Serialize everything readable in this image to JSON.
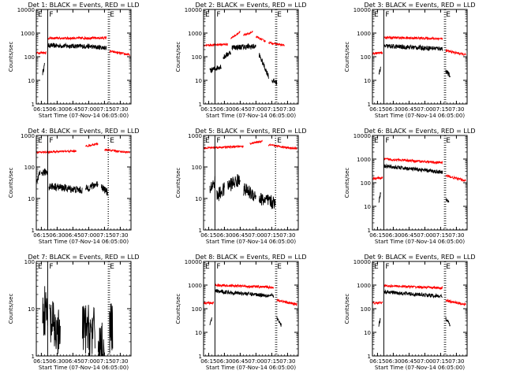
{
  "figure": {
    "type": "lightcurve-grid",
    "rows": 3,
    "cols": 3
  },
  "colors": {
    "events": "#000000",
    "lld": "#ff0000",
    "axes": "#000000"
  },
  "chart_data": [
    {
      "type": "line",
      "title": "Det 1: BLACK = Events, RED = LLD",
      "ylabel": "Counts/sec",
      "xlabel": "Start Time (07-Nov-14 06:05:00)",
      "ylim": [
        1,
        10000
      ],
      "yscale": "log",
      "xlim": [
        6.17,
        7.67
      ],
      "yticks": [
        "1",
        "10",
        "100",
        "1000",
        "10000"
      ],
      "xticks": [
        "06:15",
        "06:30",
        "06:45",
        "07:00",
        "07:15",
        "07:30"
      ],
      "markers": [
        {
          "t": 6.35,
          "style": "solid",
          "label": "F"
        },
        {
          "t": 7.31,
          "style": "dotted",
          "label": "E"
        }
      ],
      "gap_end": 7.33,
      "series": [
        {
          "name": "Events",
          "color": "#000000",
          "segs": [
            [
              6.27,
              20,
              6.3,
              45
            ],
            [
              6.35,
              300,
              7.05,
              270
            ],
            [
              7.05,
              260,
              7.28,
              240
            ]
          ],
          "noise": 0.1
        },
        {
          "name": "LLD",
          "color": "#ff0000",
          "segs": [
            [
              6.17,
              145,
              6.33,
              150
            ],
            [
              6.35,
              600,
              7.28,
              620
            ],
            [
              7.33,
              170,
              7.65,
              120
            ]
          ],
          "noise": 0.05
        }
      ]
    },
    {
      "type": "line",
      "title": "Det 2: BLACK = Events, RED = LLD",
      "ylabel": "Counts/sec",
      "xlabel": "Start Time (07-Nov-14 06:05:00)",
      "ylim": [
        1,
        10000
      ],
      "yscale": "log",
      "xlim": [
        6.17,
        7.67
      ],
      "yticks": [
        "1",
        "10",
        "100",
        "1000",
        "10000"
      ],
      "xticks": [
        "06:15",
        "06:30",
        "06:45",
        "07:00",
        "07:15",
        "07:30"
      ],
      "markers": [
        {
          "t": 6.35,
          "style": "solid",
          "label": "F"
        },
        {
          "t": 7.31,
          "style": "dotted",
          "label": "E"
        }
      ],
      "gap_end": 7.33,
      "series": [
        {
          "name": "Events",
          "color": "#000000",
          "segs": [
            [
              6.27,
              25,
              6.45,
              40
            ],
            [
              6.48,
              90,
              6.6,
              160
            ],
            [
              6.62,
              250,
              7.0,
              270
            ],
            [
              7.05,
              120,
              7.2,
              15
            ],
            [
              7.25,
              10,
              7.33,
              8
            ]
          ],
          "noise": 0.12
        },
        {
          "name": "LLD",
          "color": "#ff0000",
          "segs": [
            [
              6.17,
              300,
              6.55,
              340
            ],
            [
              6.6,
              600,
              6.75,
              1100
            ],
            [
              6.8,
              800,
              6.95,
              1100
            ],
            [
              7.0,
              700,
              7.15,
              450
            ],
            [
              7.2,
              400,
              7.45,
              300
            ]
          ],
          "noise": 0.04
        }
      ]
    },
    {
      "type": "line",
      "title": "Det 3: BLACK = Events, RED = LLD",
      "ylabel": "Counts/sec",
      "xlabel": "Start Time (07-Nov-14 06:05:00)",
      "ylim": [
        1,
        10000
      ],
      "yscale": "log",
      "xlim": [
        6.17,
        7.67
      ],
      "yticks": [
        "1",
        "10",
        "100",
        "1000",
        "10000"
      ],
      "xticks": [
        "06:15",
        "06:30",
        "06:45",
        "07:00",
        "07:15",
        "07:30"
      ],
      "markers": [
        {
          "t": 6.35,
          "style": "solid",
          "label": "F"
        },
        {
          "t": 7.31,
          "style": "dotted",
          "label": "E"
        }
      ],
      "gap_end": 7.33,
      "series": [
        {
          "name": "Events",
          "color": "#000000",
          "segs": [
            [
              6.27,
              20,
              6.3,
              30
            ],
            [
              6.35,
              280,
              7.28,
              220
            ],
            [
              7.33,
              25,
              7.4,
              15
            ]
          ],
          "noise": 0.1
        },
        {
          "name": "LLD",
          "color": "#ff0000",
          "segs": [
            [
              6.17,
              140,
              6.33,
              145
            ],
            [
              6.35,
              650,
              7.28,
              580
            ],
            [
              7.33,
              180,
              7.65,
              120
            ]
          ],
          "noise": 0.05
        }
      ]
    },
    {
      "type": "line",
      "title": "Det 4: BLACK = Events, RED = LLD",
      "ylabel": "Counts/sec",
      "xlabel": "Start Time (07-Nov-14 06:05:00)",
      "ylim": [
        1,
        1000
      ],
      "yscale": "log",
      "xlim": [
        6.17,
        7.67
      ],
      "yticks": [
        "1",
        "10",
        "100",
        "1000"
      ],
      "xticks": [
        "06:15",
        "06:30",
        "06:45",
        "07:00",
        "07:15",
        "07:30"
      ],
      "markers": [
        {
          "t": 6.35,
          "style": "solid",
          "label": "F"
        },
        {
          "t": 7.31,
          "style": "dotted",
          "label": "E"
        }
      ],
      "gap_end": 7.31,
      "series": [
        {
          "name": "Events",
          "color": "#000000",
          "segs": [
            [
              6.17,
              30,
              6.23,
              60
            ],
            [
              6.25,
              65,
              6.35,
              70
            ],
            [
              6.37,
              25,
              6.9,
              18
            ],
            [
              6.95,
              20,
              7.15,
              30
            ],
            [
              7.2,
              25,
              7.3,
              15
            ]
          ],
          "noise": 0.12
        },
        {
          "name": "LLD",
          "color": "#ff0000",
          "segs": [
            [
              6.17,
              290,
              6.8,
              320
            ],
            [
              6.95,
              450,
              7.15,
              550
            ],
            [
              7.25,
              350,
              7.65,
              290
            ]
          ],
          "noise": 0.03
        }
      ]
    },
    {
      "type": "line",
      "title": "Det 5: BLACK = Events, RED = LLD",
      "ylabel": "Counts/sec",
      "xlabel": "Start Time (07-Nov-14 06:05:00)",
      "ylim": [
        1,
        1000
      ],
      "yscale": "log",
      "xlim": [
        6.17,
        7.67
      ],
      "yticks": [
        "1",
        "10",
        "100",
        "1000"
      ],
      "xticks": [
        "06:15",
        "06:30",
        "06:45",
        "07:00",
        "07:15",
        "07:30"
      ],
      "markers": [
        {
          "t": 6.35,
          "style": "solid",
          "label": "F"
        },
        {
          "t": 7.31,
          "style": "dotted",
          "label": "E"
        }
      ],
      "gap_end": 7.31,
      "series": [
        {
          "name": "Events",
          "color": "#000000",
          "segs": [
            [
              6.27,
              20,
              6.35,
              35
            ],
            [
              6.38,
              12,
              6.5,
              20
            ],
            [
              6.55,
              25,
              6.75,
              40
            ],
            [
              6.8,
              20,
              7.0,
              12
            ],
            [
              7.05,
              10,
              7.31,
              7
            ]
          ],
          "noise": 0.22
        },
        {
          "name": "LLD",
          "color": "#ff0000",
          "segs": [
            [
              6.17,
              400,
              6.8,
              450
            ],
            [
              6.9,
              550,
              7.1,
              650
            ],
            [
              7.2,
              500,
              7.65,
              380
            ]
          ],
          "noise": 0.03
        }
      ]
    },
    {
      "type": "line",
      "title": "Det 6: BLACK = Events, RED = LLD",
      "ylabel": "Counts/sec",
      "xlabel": "Start Time (07-Nov-14 06:05:00)",
      "ylim": [
        1,
        10000
      ],
      "yscale": "log",
      "xlim": [
        6.17,
        7.67
      ],
      "yticks": [
        "1",
        "10",
        "100",
        "1000",
        "10000"
      ],
      "xticks": [
        "06:15",
        "06:30",
        "06:45",
        "07:00",
        "07:15",
        "07:30"
      ],
      "markers": [
        {
          "t": 6.35,
          "style": "solid",
          "label": "F"
        },
        {
          "t": 7.31,
          "style": "dotted",
          "label": "E"
        }
      ],
      "gap_end": 7.33,
      "series": [
        {
          "name": "Events",
          "color": "#000000",
          "segs": [
            [
              6.27,
              15,
              6.3,
              40
            ],
            [
              6.35,
              500,
              7.28,
              280
            ],
            [
              7.33,
              20,
              7.38,
              15
            ]
          ],
          "noise": 0.08
        },
        {
          "name": "LLD",
          "color": "#ff0000",
          "segs": [
            [
              6.17,
              150,
              6.33,
              160
            ],
            [
              6.35,
              1000,
              7.28,
              700
            ],
            [
              7.33,
              200,
              7.65,
              120
            ]
          ],
          "noise": 0.05
        }
      ]
    },
    {
      "type": "line",
      "title": "Det 7: BLACK = Events, RED = LLD",
      "ylabel": "Counts/sec",
      "xlabel": "Start Time (07-Nov-14 06:05:00)",
      "ylim": [
        1,
        100
      ],
      "yscale": "log",
      "xlim": [
        6.17,
        7.67
      ],
      "yticks": [
        "1",
        "10",
        "100"
      ],
      "xticks": [
        "06:15",
        "06:30",
        "06:45",
        "07:00",
        "07:15",
        "07:30"
      ],
      "markers": [
        {
          "t": 6.35,
          "style": "solid",
          "label": "F"
        },
        {
          "t": 7.31,
          "style": "dotted",
          "label": "E"
        }
      ],
      "gap_end": 7.33,
      "series": [
        {
          "name": "Events",
          "color": "#000000",
          "segs": [
            [
              6.27,
              10,
              6.35,
              7
            ],
            [
              6.38,
              5,
              6.55,
              2.5
            ],
            [
              6.9,
              4,
              7.1,
              3
            ],
            [
              7.15,
              2,
              7.25,
              1.5
            ],
            [
              7.33,
              3,
              7.38,
              5
            ]
          ],
          "noise": 0.55
        }
      ]
    },
    {
      "type": "line",
      "title": "Det 8: BLACK = Events, RED = LLD",
      "ylabel": "Counts/sec",
      "xlabel": "Start Time (07-Nov-14 06:05:00)",
      "ylim": [
        1,
        10000
      ],
      "yscale": "log",
      "xlim": [
        6.17,
        7.67
      ],
      "yticks": [
        "1",
        "10",
        "100",
        "1000",
        "10000"
      ],
      "xticks": [
        "06:15",
        "06:30",
        "06:45",
        "07:00",
        "07:15",
        "07:30"
      ],
      "markers": [
        {
          "t": 6.35,
          "style": "solid",
          "label": "F"
        },
        {
          "t": 7.31,
          "style": "dotted",
          "label": "E"
        }
      ],
      "gap_end": 7.33,
      "series": [
        {
          "name": "Events",
          "color": "#000000",
          "segs": [
            [
              6.27,
              20,
              6.3,
              40
            ],
            [
              6.35,
              550,
              7.28,
              350
            ],
            [
              7.33,
              40,
              7.4,
              20
            ]
          ],
          "noise": 0.08
        },
        {
          "name": "LLD",
          "color": "#ff0000",
          "segs": [
            [
              6.17,
              170,
              6.33,
              180
            ],
            [
              6.35,
              1000,
              7.28,
              800
            ],
            [
              7.33,
              230,
              7.65,
              150
            ]
          ],
          "noise": 0.05
        }
      ]
    },
    {
      "type": "line",
      "title": "Det 9: BLACK = Events, RED = LLD",
      "ylabel": "Counts/sec",
      "xlabel": "Start Time (07-Nov-14 06:05:00)",
      "ylim": [
        1,
        10000
      ],
      "yscale": "log",
      "xlim": [
        6.17,
        7.67
      ],
      "yticks": [
        "1",
        "10",
        "100",
        "1000",
        "10000"
      ],
      "xticks": [
        "06:15",
        "06:30",
        "06:45",
        "07:00",
        "07:15",
        "07:30"
      ],
      "markers": [
        {
          "t": 6.35,
          "style": "solid",
          "label": "F"
        },
        {
          "t": 7.31,
          "style": "dotted",
          "label": "E"
        }
      ],
      "gap_end": 7.33,
      "series": [
        {
          "name": "Events",
          "color": "#000000",
          "segs": [
            [
              6.27,
              20,
              6.3,
              40
            ],
            [
              6.35,
              520,
              7.28,
              330
            ],
            [
              7.33,
              40,
              7.4,
              20
            ]
          ],
          "noise": 0.08
        },
        {
          "name": "LLD",
          "color": "#ff0000",
          "segs": [
            [
              6.17,
              170,
              6.33,
              180
            ],
            [
              6.35,
              950,
              7.28,
              750
            ],
            [
              7.33,
              220,
              7.65,
              150
            ]
          ],
          "noise": 0.05
        }
      ]
    }
  ]
}
